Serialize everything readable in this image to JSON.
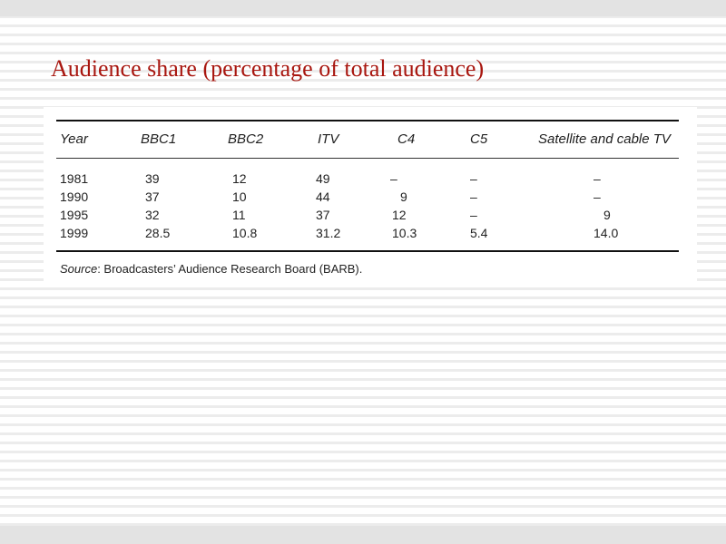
{
  "slide": {
    "title": "Audience share (percentage of total audience)"
  },
  "table": {
    "columns": [
      "Year",
      "BBC1",
      "BBC2",
      "ITV",
      "C4",
      "C5",
      "Satellite and cable TV"
    ],
    "rows": [
      [
        "1981",
        "39",
        "12",
        "49",
        "–",
        "–",
        "–"
      ],
      [
        "1990",
        "37",
        "10",
        "44",
        "9",
        "–",
        "–"
      ],
      [
        "1995",
        "32",
        "11",
        "37",
        "12",
        "–",
        "9"
      ],
      [
        "1999",
        "28.5",
        "10.8",
        "31.2",
        "10.3",
        "5.4",
        "14.0"
      ]
    ],
    "source_label": "Source",
    "source_text": ": Broadcasters’ Audience Research Board (BARB)."
  }
}
